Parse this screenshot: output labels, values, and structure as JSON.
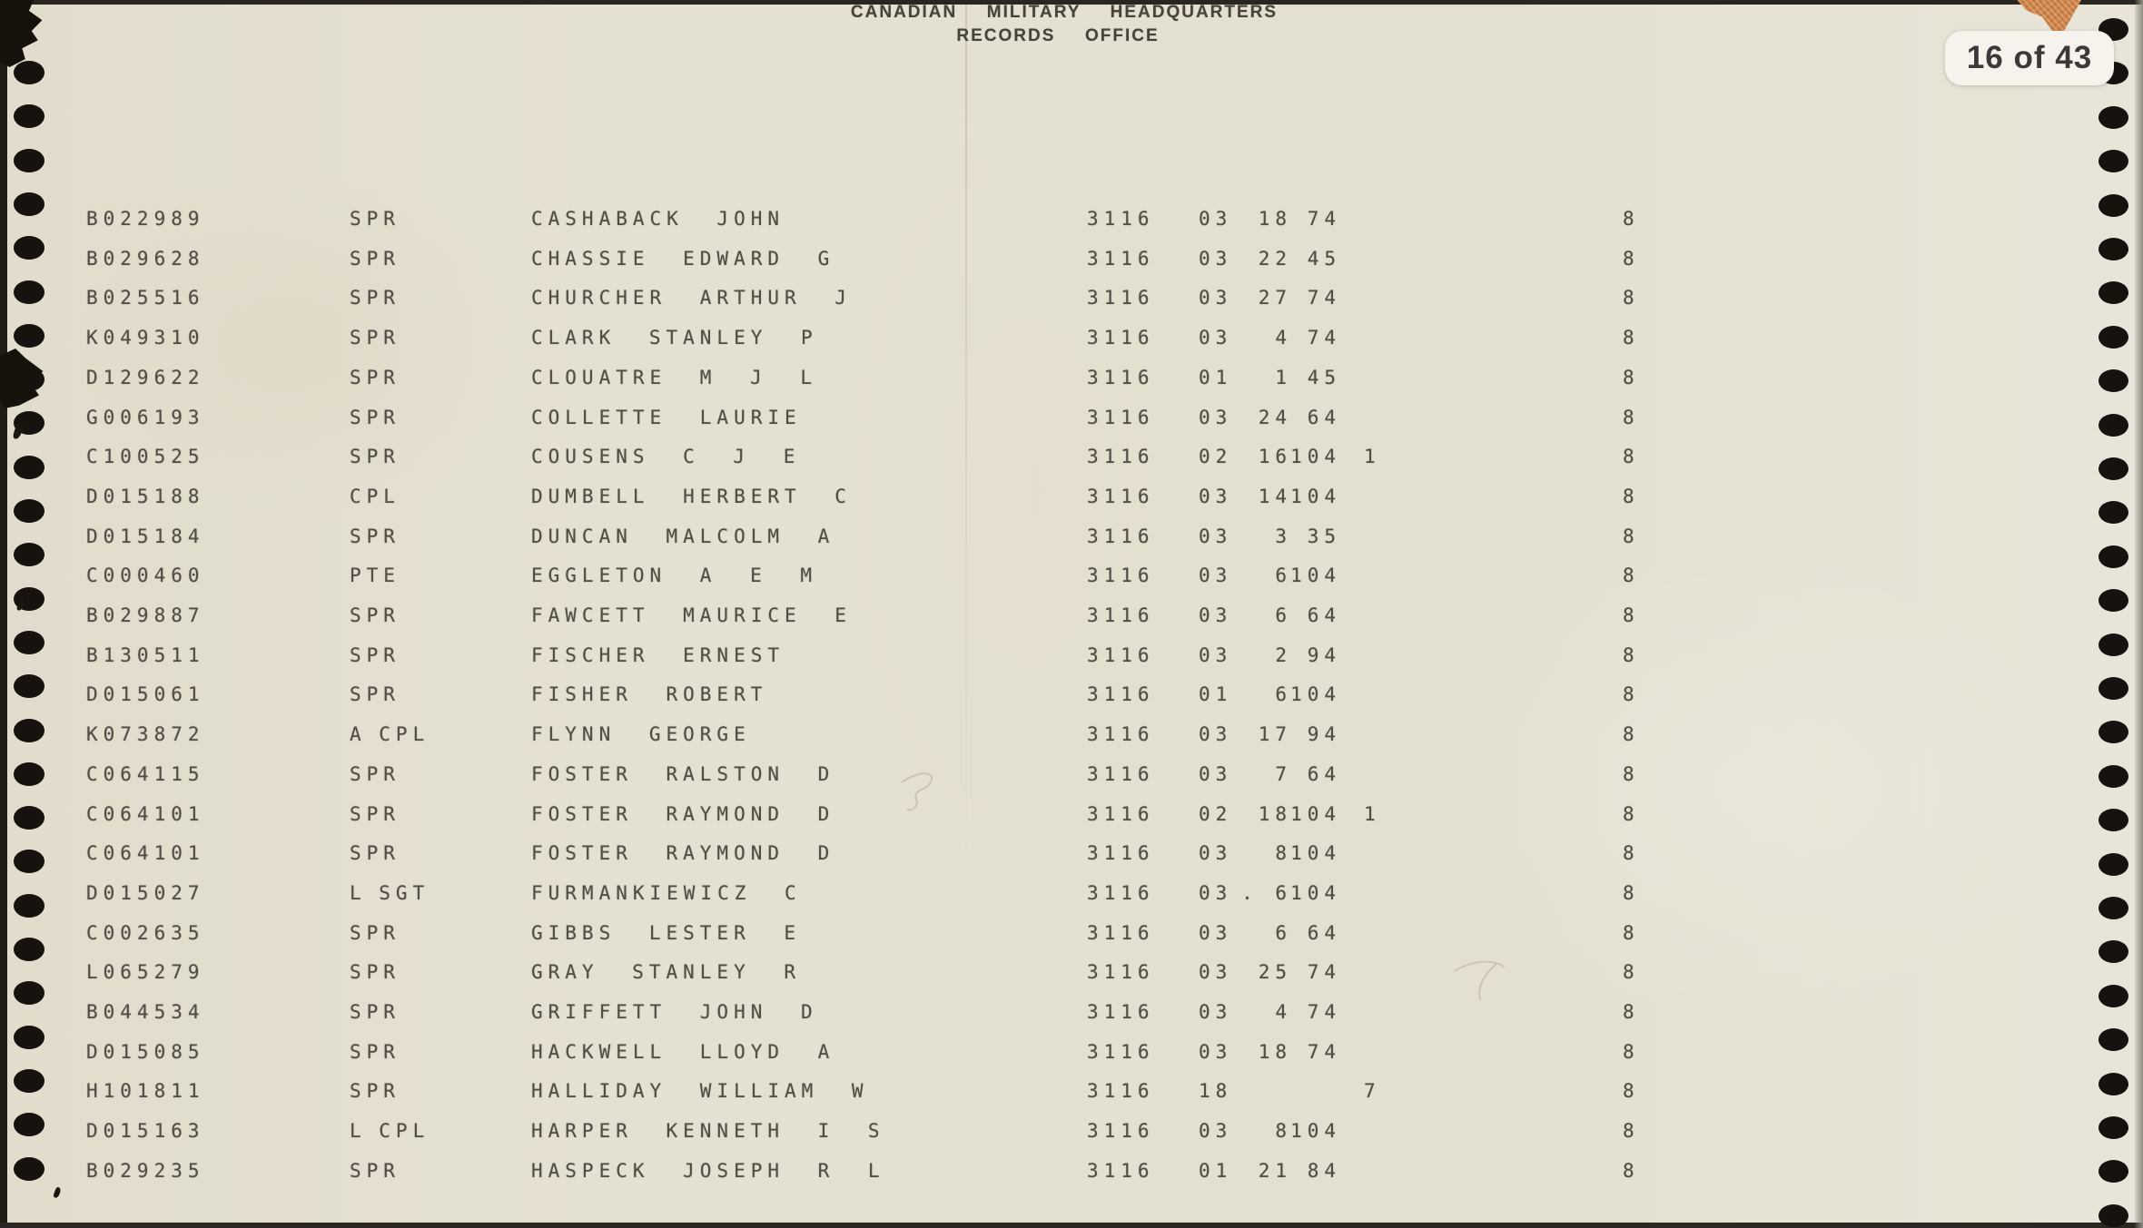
{
  "header": {
    "line1": "CANADIAN  MILITARY  HEADQUARTERS",
    "line2": "RECORDS  OFFICE"
  },
  "page_indicator": {
    "text": "16 of 43",
    "current_page": "16",
    "total_pages": "43"
  },
  "colors": {
    "paper": "#e4e0d1",
    "ink": "#514e45",
    "header_ink": "#45433a",
    "badge_bg": "#f5f3eb",
    "tape_orange": "#cd8246",
    "punch_hole": "#16130e"
  },
  "table": {
    "rows": [
      {
        "service_number": "B022989",
        "rank": "SPR",
        "name": "CASHABACK JOHN",
        "unit": "3116",
        "code": "03",
        "day": "18",
        "num": "74",
        "flag": "",
        "col8": "8"
      },
      {
        "service_number": "B029628",
        "rank": "SPR",
        "name": "CHASSIE EDWARD G",
        "unit": "3116",
        "code": "03",
        "day": "22",
        "num": "45",
        "flag": "",
        "col8": "8"
      },
      {
        "service_number": "B025516",
        "rank": "SPR",
        "name": "CHURCHER ARTHUR J",
        "unit": "3116",
        "code": "03",
        "day": "27",
        "num": "74",
        "flag": "",
        "col8": "8"
      },
      {
        "service_number": "K049310",
        "rank": "SPR",
        "name": "CLARK STANLEY P",
        "unit": "3116",
        "code": "03",
        "day": "4",
        "num": "74",
        "flag": "",
        "col8": "8"
      },
      {
        "service_number": "D129622",
        "rank": "SPR",
        "name": "CLOUATRE M J L",
        "unit": "3116",
        "code": "01",
        "day": "1",
        "num": "45",
        "flag": "",
        "col8": "8"
      },
      {
        "service_number": "G006193",
        "rank": "SPR",
        "name": "COLLETTE LAURIE",
        "unit": "3116",
        "code": "03",
        "day": "24",
        "num": "64",
        "flag": "",
        "col8": "8"
      },
      {
        "service_number": "C100525",
        "rank": "SPR",
        "name": "COUSENS C J E",
        "unit": "3116",
        "code": "02",
        "day": "16",
        "num": "104",
        "flag": "1",
        "col8": "8"
      },
      {
        "service_number": "D015188",
        "rank": "CPL",
        "name": "DUMBELL HERBERT C",
        "unit": "3116",
        "code": "03",
        "day": "14",
        "num": "104",
        "flag": "",
        "col8": "8"
      },
      {
        "service_number": "D015184",
        "rank": "SPR",
        "name": "DUNCAN MALCOLM A",
        "unit": "3116",
        "code": "03",
        "day": "3",
        "num": "35",
        "flag": "",
        "col8": "8"
      },
      {
        "service_number": "C000460",
        "rank": "PTE",
        "name": "EGGLETON A E M",
        "unit": "3116",
        "code": "03",
        "day": "6",
        "num": "104",
        "flag": "",
        "col8": "8"
      },
      {
        "service_number": "B029887",
        "rank": "SPR",
        "name": "FAWCETT MAURICE E",
        "unit": "3116",
        "code": "03",
        "day": "6",
        "num": "64",
        "flag": "",
        "col8": "8"
      },
      {
        "service_number": "B130511",
        "rank": "SPR",
        "name": "FISCHER ERNEST",
        "unit": "3116",
        "code": "03",
        "day": "2",
        "num": "94",
        "flag": "",
        "col8": "8"
      },
      {
        "service_number": "D015061",
        "rank": "SPR",
        "name": "FISHER ROBERT",
        "unit": "3116",
        "code": "01",
        "day": "6",
        "num": "104",
        "flag": "",
        "col8": "8"
      },
      {
        "service_number": "K073872",
        "rank": "A CPL",
        "name": "FLYNN GEORGE",
        "unit": "3116",
        "code": "03",
        "day": "17",
        "num": "94",
        "flag": "",
        "col8": "8"
      },
      {
        "service_number": "C064115",
        "rank": "SPR",
        "name": "FOSTER RALSTON D",
        "unit": "3116",
        "code": "03",
        "day": "7",
        "num": "64",
        "flag": "",
        "col8": "8"
      },
      {
        "service_number": "C064101",
        "rank": "SPR",
        "name": "FOSTER RAYMOND D",
        "unit": "3116",
        "code": "02",
        "day": "18",
        "num": "104",
        "flag": "1",
        "col8": "8"
      },
      {
        "service_number": "C064101",
        "rank": "SPR",
        "name": "FOSTER RAYMOND D",
        "unit": "3116",
        "code": "03",
        "day": "8",
        "num": "104",
        "flag": "",
        "col8": "8"
      },
      {
        "service_number": "D015027",
        "rank": "L SGT",
        "name": "FURMANKIEWICZ C",
        "unit": "3116",
        "code": "03",
        "day": ". 6",
        "num": "104",
        "flag": "",
        "col8": "8"
      },
      {
        "service_number": "C002635",
        "rank": "SPR",
        "name": "GIBBS LESTER E",
        "unit": "3116",
        "code": "03",
        "day": "6",
        "num": "64",
        "flag": "",
        "col8": "8"
      },
      {
        "service_number": "L065279",
        "rank": "SPR",
        "name": "GRAY STANLEY R",
        "unit": "3116",
        "code": "03",
        "day": "25",
        "num": "74",
        "flag": "",
        "col8": "8"
      },
      {
        "service_number": "B044534",
        "rank": "SPR",
        "name": "GRIFFETT JOHN D",
        "unit": "3116",
        "code": "03",
        "day": "4",
        "num": "74",
        "flag": "",
        "col8": "8"
      },
      {
        "service_number": "D015085",
        "rank": "SPR",
        "name": "HACKWELL LLOYD A",
        "unit": "3116",
        "code": "03",
        "day": "18",
        "num": "74",
        "flag": "",
        "col8": "8"
      },
      {
        "service_number": "H101811",
        "rank": "SPR",
        "name": "HALLIDAY WILLIAM W",
        "unit": "3116",
        "code": "18",
        "day": "",
        "num": "",
        "flag": "7",
        "col8": "8"
      },
      {
        "service_number": "D015163",
        "rank": "L CPL",
        "name": "HARPER KENNETH I S",
        "unit": "3116",
        "code": "03",
        "day": "8",
        "num": "104",
        "flag": "",
        "col8": "8"
      },
      {
        "service_number": "B029235",
        "rank": "SPR",
        "name": "HASPECK JOSEPH R L",
        "unit": "3116",
        "code": "01",
        "day": "21",
        "num": "84",
        "flag": "",
        "col8": "8"
      }
    ]
  }
}
